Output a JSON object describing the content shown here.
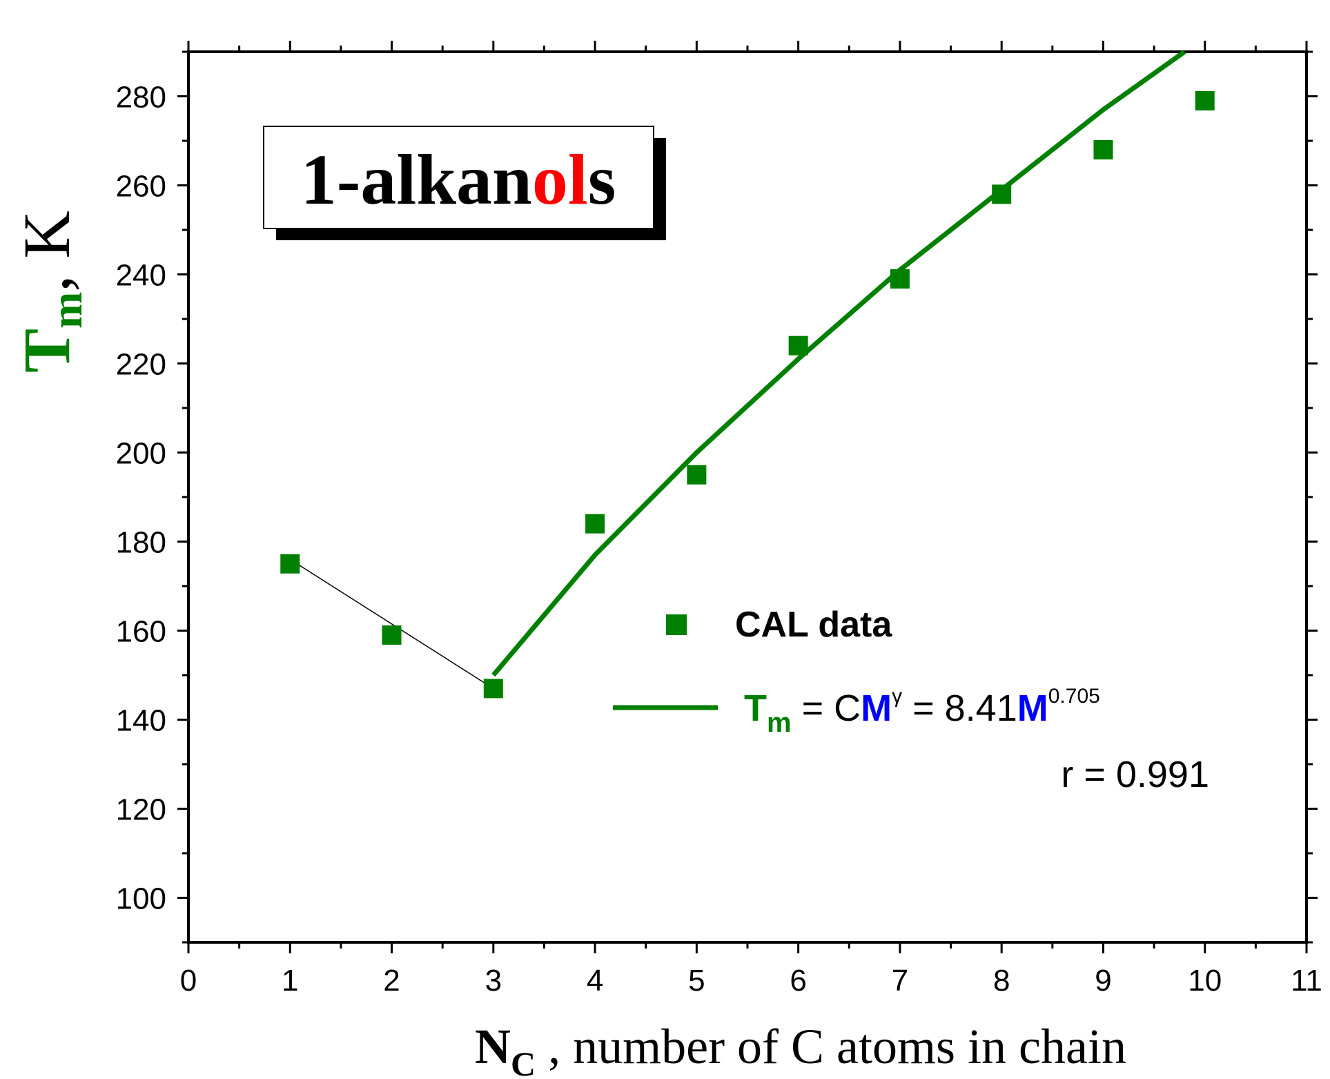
{
  "chart_data": {
    "type": "scatter",
    "title_box": {
      "parts": [
        {
          "text": "1-alkan",
          "color": "#000000"
        },
        {
          "text": "ol",
          "color": "#ff0000"
        },
        {
          "text": "s",
          "color": "#000000"
        }
      ]
    },
    "xlabel": {
      "main": "N",
      "sub": "C",
      "rest": " , number of C atoms in chain"
    },
    "ylabel": {
      "main": "T",
      "sub": "m",
      "rest": ", K"
    },
    "xlim": [
      0,
      11
    ],
    "ylim": [
      90,
      290
    ],
    "x_ticks": [
      0,
      1,
      2,
      3,
      4,
      5,
      6,
      7,
      8,
      9,
      10,
      11
    ],
    "y_ticks": [
      100,
      120,
      140,
      160,
      180,
      200,
      220,
      240,
      260,
      280
    ],
    "series": [
      {
        "name": "CAL data",
        "kind": "markers",
        "color": "#008000",
        "x": [
          1,
          2,
          3,
          4,
          5,
          6,
          7,
          8,
          9,
          10
        ],
        "y": [
          175,
          159,
          147,
          184,
          195,
          224,
          239,
          258,
          268,
          279
        ]
      },
      {
        "kind": "line",
        "color": "#000000",
        "x": [
          1,
          3
        ],
        "y": [
          176,
          147
        ]
      },
      {
        "kind": "line",
        "color": "#008000",
        "x": [
          3,
          4,
          5,
          6,
          7,
          8,
          9,
          9.8
        ],
        "y": [
          150,
          177,
          200,
          221,
          241,
          259,
          277,
          290
        ]
      }
    ],
    "legend": {
      "entries": [
        {
          "label": "CAL data",
          "marker": "square"
        },
        {
          "label_parts": [
            {
              "text": "T",
              "color": "#008000"
            },
            {
              "text": "m",
              "color": "#008000",
              "sub": true
            },
            {
              "text": " = C",
              "color": "#000000"
            },
            {
              "text": "M",
              "color": "#0000ff"
            },
            {
              "text": "γ",
              "color": "#000000",
              "sup": true
            },
            {
              "text": " = 8.41",
              "color": "#000000"
            },
            {
              "text": "M",
              "color": "#0000ff"
            },
            {
              "text": "0.705",
              "color": "#000000",
              "sup": true
            }
          ],
          "marker": "line"
        }
      ],
      "placement": "center-right"
    },
    "annotation": "r = 0.991",
    "grid": false,
    "colors": {
      "markers": "#008000",
      "fit_line": "#008000",
      "short_line": "#000000",
      "highlight_red": "#ff0000",
      "highlight_blue": "#0000ff"
    }
  }
}
